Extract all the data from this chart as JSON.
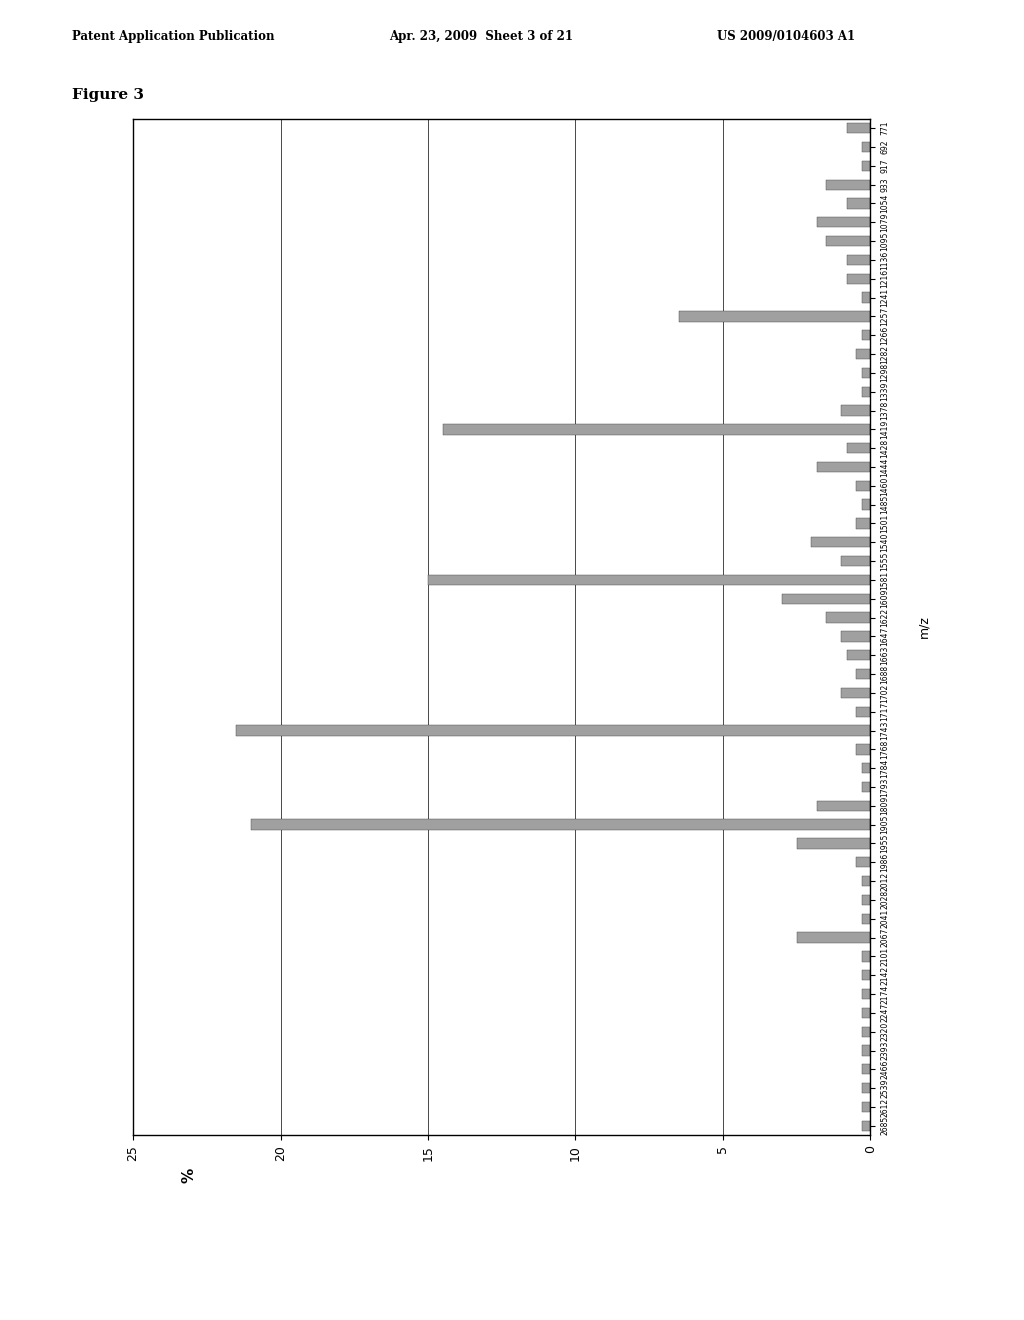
{
  "background_color": "#ffffff",
  "figure_label": "Figure 3",
  "page_header_left": "Patent Application Publication",
  "page_header_mid": "Apr. 23, 2009  Sheet 3 of 21",
  "page_header_right": "US 2009/0104603 A1",
  "mz_values": [
    2685,
    2612,
    2539,
    2466,
    2393,
    2320,
    2247,
    2174,
    2142,
    2101,
    2067,
    2041,
    2028,
    2012,
    1986,
    1955,
    1905,
    1809,
    1793,
    1784,
    1768,
    1743,
    1717,
    1702,
    1688,
    1663,
    1647,
    1622,
    1609,
    1581,
    1555,
    1540,
    1501,
    1485,
    1460,
    1444,
    1428,
    1419,
    1378,
    1339,
    1298,
    1282,
    1266,
    1257,
    1241,
    1216,
    1136,
    1095,
    1079,
    1054,
    933,
    917,
    692,
    771
  ],
  "bar_values": [
    0.3,
    0.3,
    0.3,
    0.3,
    0.3,
    0.3,
    0.3,
    0.3,
    0.3,
    0.3,
    2.5,
    0.3,
    0.3,
    0.3,
    0.5,
    2.5,
    21.0,
    1.8,
    0.3,
    0.3,
    0.5,
    21.5,
    0.5,
    1.0,
    0.5,
    0.8,
    1.0,
    1.5,
    3.0,
    15.0,
    1.0,
    2.0,
    0.5,
    0.3,
    0.5,
    1.8,
    0.8,
    14.5,
    1.0,
    0.3,
    0.3,
    0.5,
    0.3,
    6.5,
    0.3,
    0.8,
    0.8,
    1.5,
    1.8,
    0.8,
    1.5,
    0.3,
    0.3,
    0.8
  ],
  "bar_color": "#a0a0a0",
  "bar_edge_color": "#404040",
  "xlim_max": 25,
  "xticks": [
    0,
    5,
    10,
    15,
    20,
    25
  ],
  "xlabel": "%",
  "ylabel": "m/z",
  "grid_color": "#000000",
  "grid_linewidth": 0.5,
  "bar_height": 0.55
}
